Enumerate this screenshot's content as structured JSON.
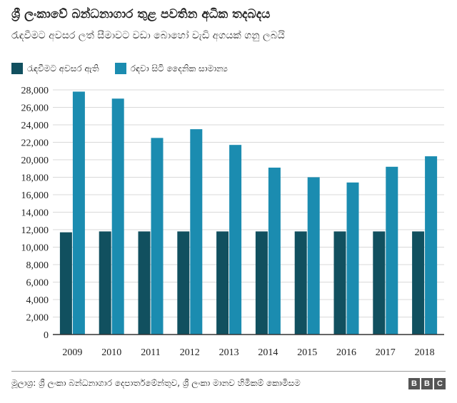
{
  "title": "ශ්‍රී ලංකාවේ බන්ධනාගාර තුළ පවතින අධික තදබදය",
  "subtitle": "රැඳවීමට අවසර ලත් සීමාවට වඩා බොහෝ වැඩි අගයක් ගනු ලබයි",
  "colors": {
    "series1": "#11505f",
    "series2": "#1b8cb0",
    "axis": "#333333",
    "grid": "#d9d9d9"
  },
  "source": "මූලාශ්‍ර: ශ්‍රී ලංකා බන්ධනාගාර දෙපාර්තමේන්තුව, ශ්‍රී ලංකා මානව හිමිකම් කොමිසම",
  "logo": {
    "letters": [
      "B",
      "B",
      "C"
    ]
  },
  "chart_data": {
    "type": "bar",
    "categories": [
      "2009",
      "2010",
      "2011",
      "2012",
      "2013",
      "2014",
      "2015",
      "2016",
      "2017",
      "2018"
    ],
    "series": [
      {
        "name": "රැඳවීමට අවසර ඇති",
        "values": [
          11700,
          11800,
          11800,
          11800,
          11800,
          11800,
          11800,
          11800,
          11800,
          11800
        ]
      },
      {
        "name": "රඳවා සිටි දෛනික සාමාන්‍ය",
        "values": [
          27800,
          27000,
          22500,
          23500,
          21700,
          19100,
          18000,
          17400,
          19200,
          20400
        ]
      }
    ],
    "yticks": [
      "0",
      "2,000",
      "4,000",
      "6,000",
      "8,000",
      "10,000",
      "12,000",
      "14,000",
      "16,000",
      "18,000",
      "20,000",
      "22,000",
      "24,000",
      "26,000",
      "28,000"
    ],
    "ylim": [
      0,
      28000
    ],
    "grid": true,
    "legend": "top-left"
  }
}
